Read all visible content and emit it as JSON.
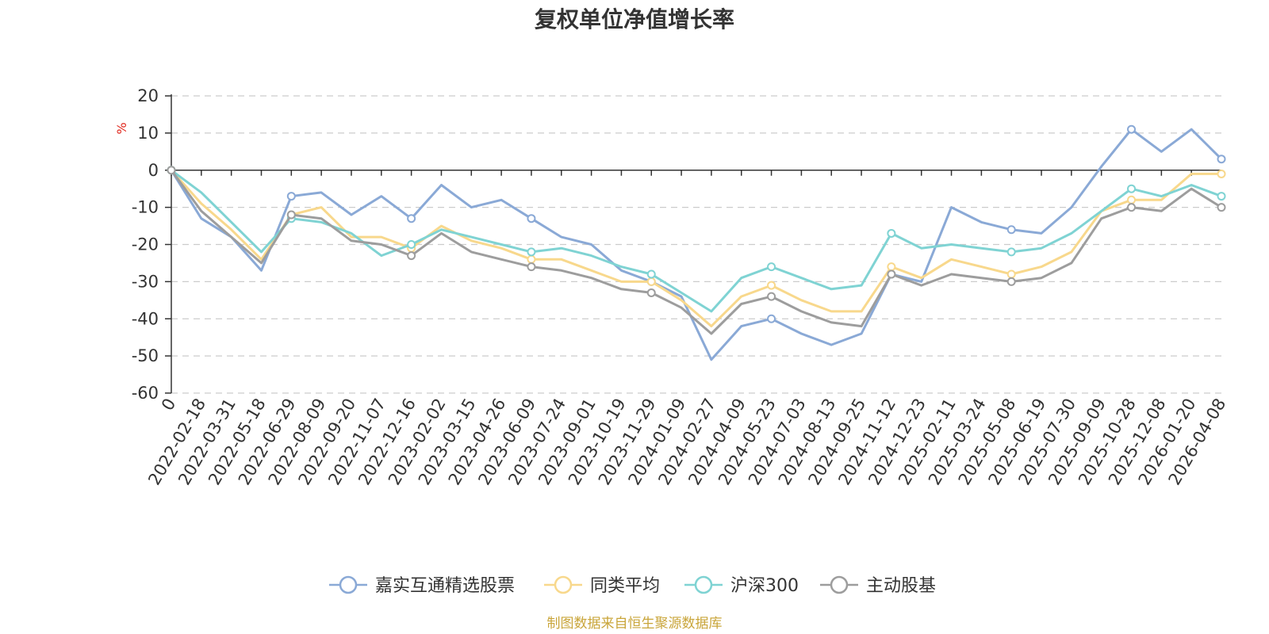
{
  "chart_data": {
    "type": "line",
    "title": "复权单位净值增长率",
    "ylabel": "%",
    "ylim": [
      -60,
      20
    ],
    "yticks": [
      20,
      10,
      0,
      -10,
      -20,
      -30,
      -40,
      -50,
      -60
    ],
    "grid": true,
    "legend_position": "bottom",
    "x_tick_labels": [
      "0",
      "2022-02-18",
      "2022-03-31",
      "2022-05-18",
      "2022-06-29",
      "2022-08-09",
      "2022-09-20",
      "2022-11-07",
      "2022-12-16",
      "2023-02-02",
      "2023-03-15",
      "2023-04-26",
      "2023-06-09",
      "2023-07-24",
      "2023-09-01",
      "2023-10-19",
      "2023-11-29",
      "2024-01-09",
      "2024-02-27",
      "2024-04-09",
      "2024-05-23",
      "2024-07-03",
      "2024-08-13",
      "2024-09-25",
      "2024-11-12",
      "2024-12-23",
      "2025-02-11",
      "2025-03-24",
      "2025-05-08",
      "2025-06-19",
      "2025-07-30",
      "2025-09-09",
      "2025-10-28",
      "2025-12-08",
      "2026-01-20",
      "2026-04-08"
    ],
    "x": [
      "0",
      "2022-02-18",
      "2022-03-31",
      "2022-05-18",
      "2022-06-29",
      "2022-08-09",
      "2022-09-20",
      "2022-11-07",
      "2022-12-16",
      "2023-02-02",
      "2023-03-15",
      "2023-04-26",
      "2023-06-09",
      "2023-07-24",
      "2023-09-01",
      "2023-10-19",
      "2023-11-29",
      "2024-01-09",
      "2024-02-27",
      "2024-04-09",
      "2024-05-23",
      "2024-07-03",
      "2024-08-13",
      "2024-09-25",
      "2024-11-12",
      "2024-12-23",
      "2025-02-11",
      "2025-03-24",
      "2025-05-08",
      "2025-06-19",
      "2025-07-30",
      "2025-09-09",
      "2025-10-28",
      "2025-12-08",
      "2026-01-20",
      "2026-04-08"
    ],
    "series": [
      {
        "name": "嘉实互通精选股票",
        "color": "#8aa9d6",
        "values": [
          0,
          -13,
          -18,
          -27,
          -7,
          -6,
          -12,
          -7,
          -13,
          -4,
          -10,
          -8,
          -13,
          -18,
          -20,
          -27,
          -30,
          -34,
          -51,
          -42,
          -40,
          -44,
          -47,
          -44,
          -28,
          -30,
          -10,
          -14,
          -16,
          -17,
          -10,
          1,
          11,
          5,
          11,
          3
        ]
      },
      {
        "name": "同类平均",
        "color": "#f8d88c",
        "values": [
          0,
          -9,
          -16,
          -24,
          -12,
          -10,
          -18,
          -18,
          -21,
          -15,
          -19,
          -21,
          -24,
          -24,
          -27,
          -30,
          -30,
          -35,
          -42,
          -34,
          -31,
          -35,
          -38,
          -38,
          -26,
          -29,
          -24,
          -26,
          -28,
          -26,
          -22,
          -11,
          -8,
          -8,
          -1,
          -1
        ]
      },
      {
        "name": "沪深300",
        "color": "#7fd3d3",
        "values": [
          0,
          -6,
          -14,
          -22,
          -13,
          -14,
          -17,
          -23,
          -20,
          -16,
          -18,
          -20,
          -22,
          -21,
          -23,
          -26,
          -28,
          -33,
          -38,
          -29,
          -26,
          -29,
          -32,
          -31,
          -17,
          -21,
          -20,
          -21,
          -22,
          -21,
          -17,
          -11,
          -5,
          -7,
          -4,
          -7
        ]
      },
      {
        "name": "主动股基",
        "color": "#9d9d9d",
        "values": [
          0,
          -11,
          -18,
          -25,
          -12,
          -13,
          -19,
          -20,
          -23,
          -17,
          -22,
          -24,
          -26,
          -27,
          -29,
          -32,
          -33,
          -37,
          -44,
          -36,
          -34,
          -38,
          -41,
          -42,
          -28,
          -31,
          -28,
          -29,
          -30,
          -29,
          -25,
          -13,
          -10,
          -11,
          -5,
          -10
        ]
      }
    ]
  },
  "footer": {
    "source_text": "制图数据来自恒生聚源数据库"
  }
}
